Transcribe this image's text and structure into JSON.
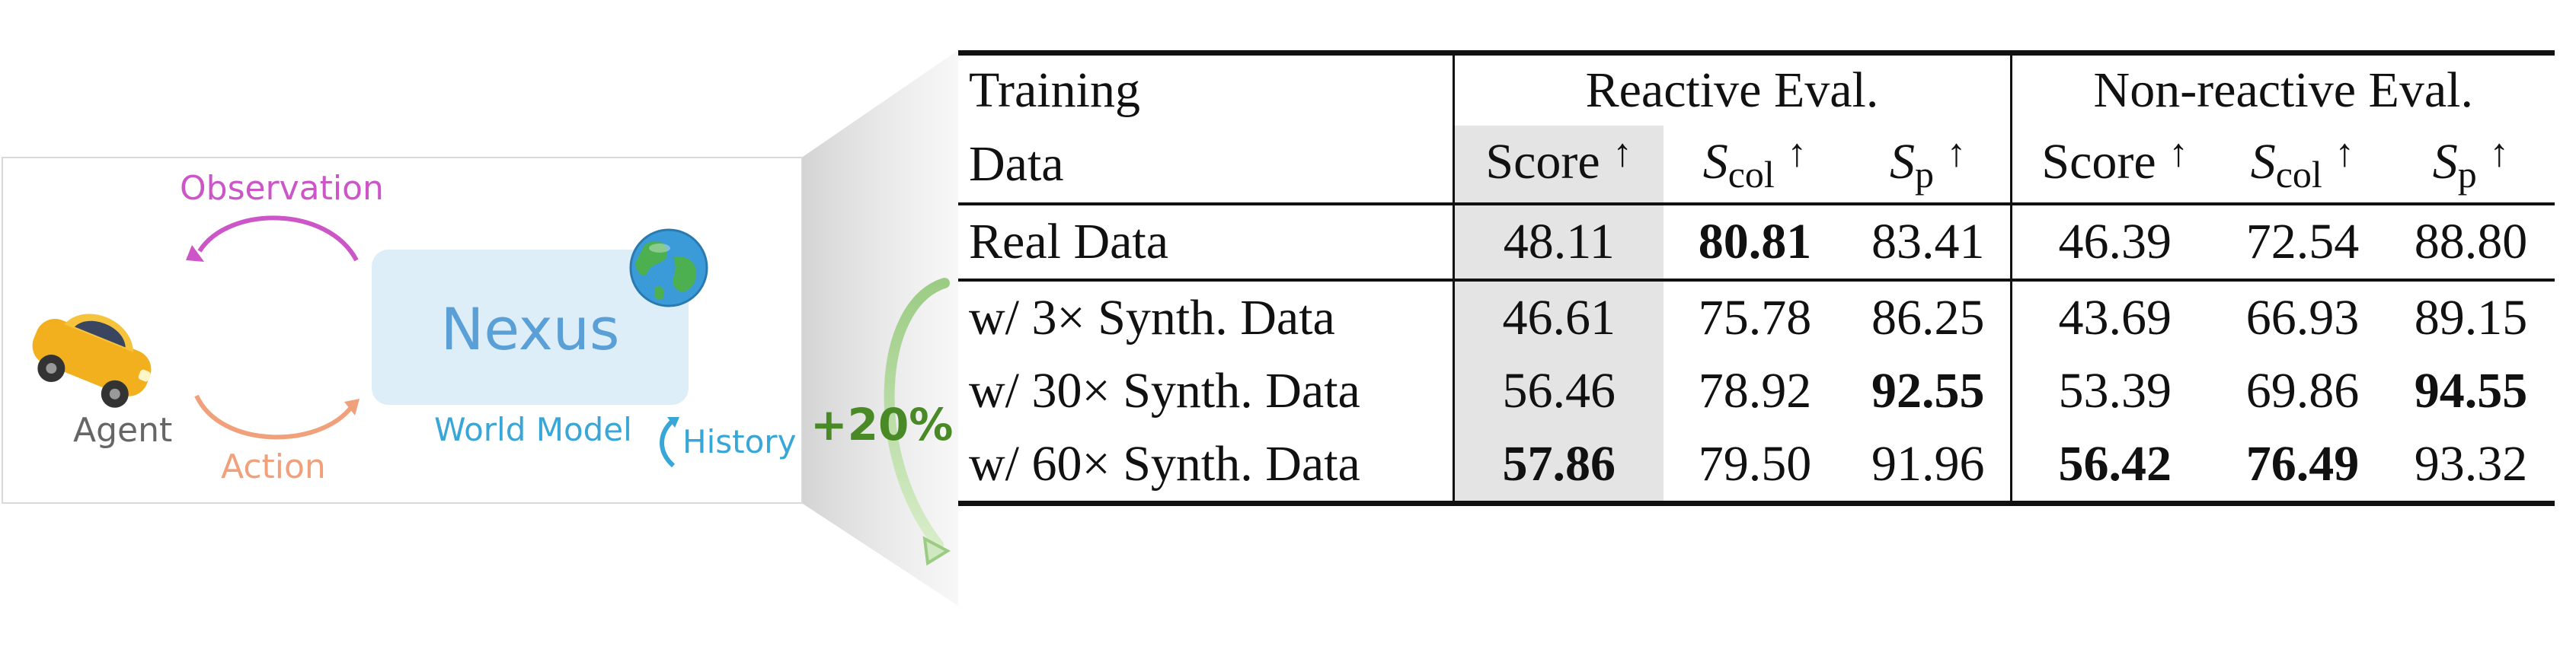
{
  "diagram": {
    "observation_label": "Observation",
    "agent_label": "Agent",
    "action_label": "Action",
    "world_model_name": "Nexus",
    "world_model_label": "World Model",
    "history_label": "History",
    "gain_label": "+20%",
    "colors": {
      "observation": "#cc55c8",
      "action": "#f0a07a",
      "world_model": "#38a6d6",
      "gain": "#4a8a26",
      "world_model_box": "#ddeef8"
    },
    "icons": [
      "car-icon",
      "globe-icon"
    ]
  },
  "table": {
    "header": {
      "row_label_line1": "Training",
      "row_label_line2": "Data",
      "group1": "Reactive Eval.",
      "group2": "Non-reactive Eval.",
      "col_score": "Score",
      "col_scol_base": "S",
      "col_scol_sub": "col",
      "col_sp_base": "S",
      "col_sp_sub": "p",
      "arrow": "↑"
    },
    "rows": [
      {
        "label": "Real Data",
        "values": [
          "48.11",
          "80.81",
          "83.41",
          "46.39",
          "72.54",
          "88.80"
        ],
        "bold": [
          false,
          true,
          false,
          false,
          false,
          false
        ]
      },
      {
        "label": "w/ 3× Synth. Data",
        "values": [
          "46.61",
          "75.78",
          "86.25",
          "43.69",
          "66.93",
          "89.15"
        ],
        "bold": [
          false,
          false,
          false,
          false,
          false,
          false
        ]
      },
      {
        "label": "w/ 30× Synth. Data",
        "values": [
          "56.46",
          "78.92",
          "92.55",
          "53.39",
          "69.86",
          "94.55"
        ],
        "bold": [
          false,
          false,
          true,
          false,
          false,
          true
        ]
      },
      {
        "label": "w/ 60× Synth. Data",
        "values": [
          "57.86",
          "79.50",
          "91.96",
          "56.42",
          "76.49",
          "93.32"
        ],
        "bold": [
          true,
          false,
          false,
          true,
          true,
          false
        ]
      }
    ]
  }
}
